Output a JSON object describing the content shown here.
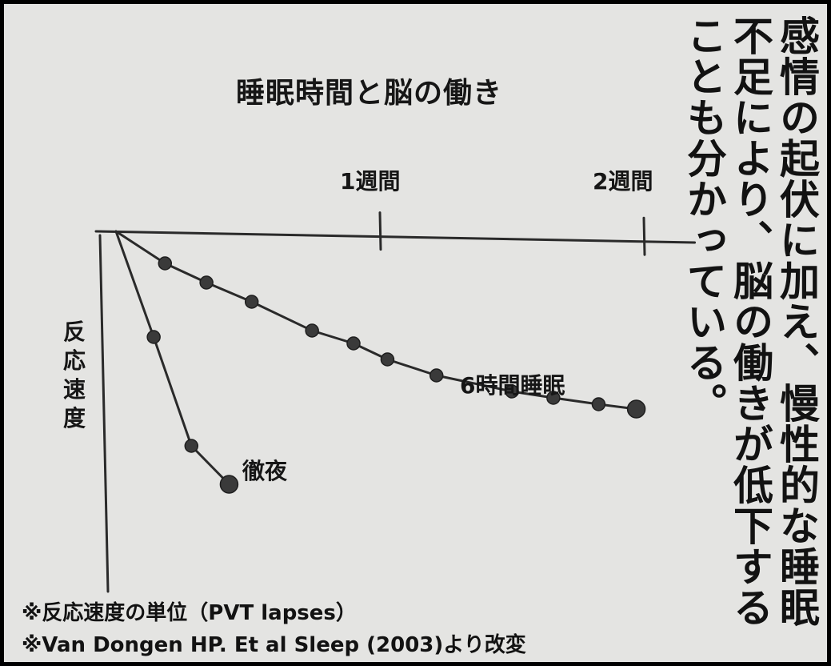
{
  "chart_data": {
    "type": "line",
    "title": "睡眠時間と脳の働き",
    "ylabel": "反応速度",
    "xticks": [
      {
        "value": 7,
        "label": "1週間"
      },
      {
        "value": 14,
        "label": "2週間"
      }
    ],
    "xlim": [
      0,
      14.5
    ],
    "ylim": [
      -11.5,
      0
    ],
    "series": [
      {
        "name": "6時間睡眠",
        "x": [
          0,
          1.3,
          2.4,
          3.6,
          5.2,
          6.3,
          7.2,
          8.5,
          10.5,
          11.6,
          12.8,
          13.8
        ],
        "values": [
          0,
          -1.0,
          -1.6,
          -2.2,
          -3.1,
          -3.5,
          -4.0,
          -4.5,
          -5.0,
          -5.2,
          -5.4,
          -5.55
        ]
      },
      {
        "name": "徹夜",
        "x": [
          0,
          1,
          2,
          3
        ],
        "values": [
          0,
          -3.3,
          -6.7,
          -7.9
        ]
      }
    ]
  },
  "side_text": "感情の起伏に加え、慢性的な睡眠不足により、脳の働きが低下することも分かっている。",
  "notes": {
    "line1": "※反応速度の単位（PVT lapses）",
    "line2": "※Van Dongen HP. Et al Sleep (2003)より改変"
  }
}
